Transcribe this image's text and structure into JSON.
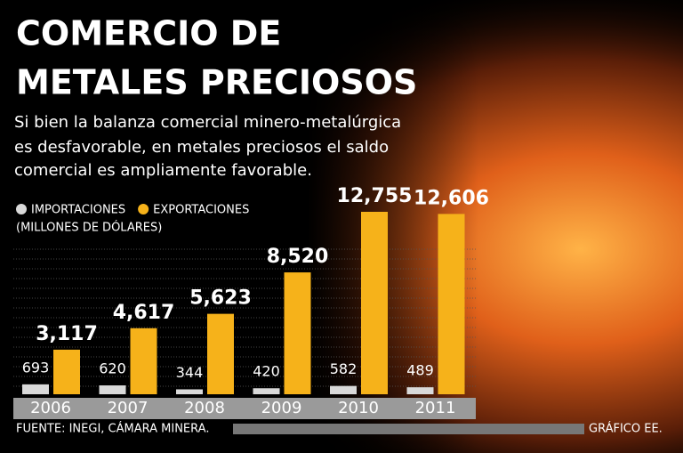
{
  "chart_data": {
    "type": "bar",
    "title": [
      "COMERCIO DE",
      "METALES PRECIOSOS"
    ],
    "subtitle": [
      "Si bien la balanza comercial minero-metalúrgica",
      "es desfavorable, en metales preciosos el saldo",
      "comercial es ampliamente favorable."
    ],
    "unit_label": "(MILLONES DE DÓLARES)",
    "categories": [
      "2006",
      "2007",
      "2008",
      "2009",
      "2010",
      "2011"
    ],
    "series": [
      {
        "name": "IMPORTACIONES",
        "color": "#d9d9d9",
        "values": [
          693,
          620,
          344,
          420,
          582,
          489
        ]
      },
      {
        "name": "EXPORTACIONES",
        "color": "#f6b21a",
        "values": [
          3117,
          4617,
          5623,
          8520,
          12755,
          12606
        ],
        "value_labels": [
          "3,117",
          "4,617",
          "5,623",
          "8,520",
          "12,755",
          "12,606"
        ]
      }
    ],
    "source": "FUENTE: INEGI, CÁMARA MINERA.",
    "credit": "GRÁFICO EE."
  }
}
